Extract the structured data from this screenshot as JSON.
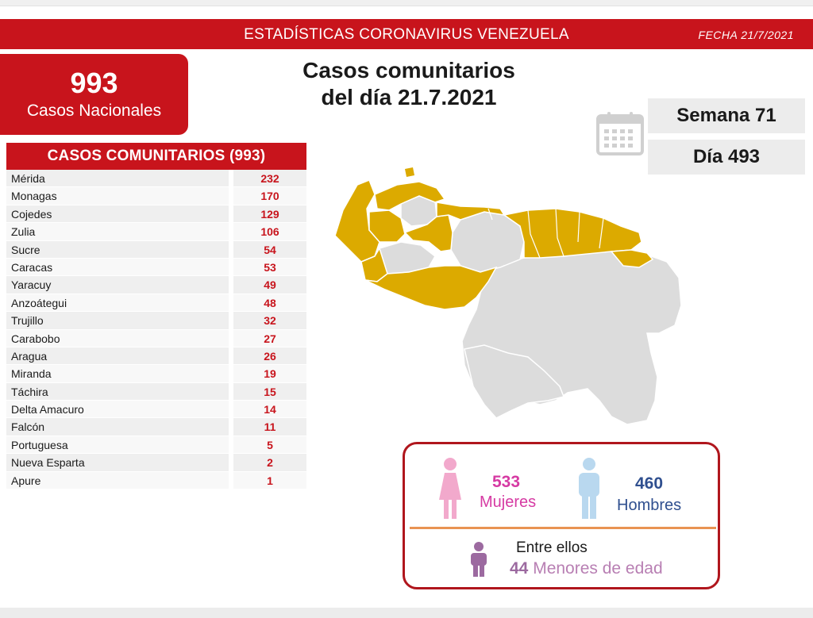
{
  "header": {
    "title": "ESTADÍSTICAS CORONAVIRUS VENEZUELA",
    "date": "FECHA 21/7/2021"
  },
  "national": {
    "count": "993",
    "label": "Casos Nacionales"
  },
  "main_title": {
    "line1": "Casos comunitarios",
    "line2": "del día 21.7.2021"
  },
  "calendar": {
    "icon": "calendar-icon",
    "week": "Semana 71",
    "day": "Día 493"
  },
  "table": {
    "heading": "CASOS COMUNITARIOS (993)",
    "rows": [
      {
        "name": "Mérida",
        "value": "232"
      },
      {
        "name": "Monagas",
        "value": "170"
      },
      {
        "name": "Cojedes",
        "value": "129"
      },
      {
        "name": "Zulia",
        "value": "106"
      },
      {
        "name": "Sucre",
        "value": "54"
      },
      {
        "name": "Caracas",
        "value": "53"
      },
      {
        "name": "Yaracuy",
        "value": "49"
      },
      {
        "name": "Anzoátegui",
        "value": "48"
      },
      {
        "name": "Trujillo",
        "value": "32"
      },
      {
        "name": "Carabobo",
        "value": "27"
      },
      {
        "name": "Aragua",
        "value": "26"
      },
      {
        "name": "Miranda",
        "value": "19"
      },
      {
        "name": "Táchira",
        "value": "15"
      },
      {
        "name": "Delta Amacuro",
        "value": "14"
      },
      {
        "name": "Falcón",
        "value": "11"
      },
      {
        "name": "Portuguesa",
        "value": "5"
      },
      {
        "name": "Nueva Esparta",
        "value": "2"
      },
      {
        "name": "Apure",
        "value": "1"
      }
    ]
  },
  "map": {
    "highlight_color": "#dcaa00",
    "base_color": "#dcdcdc"
  },
  "gender": {
    "women_count": "533",
    "women_label": "Mujeres",
    "men_count": "460",
    "men_label": "Hombres",
    "among_label": "Entre ellos",
    "minors_count": "44",
    "minors_label": "Menores de edad",
    "colors": {
      "women": "#d63aa3",
      "men": "#2f4f8f",
      "minors": "#9c6aa0",
      "divider": "#e99352",
      "border": "#b0161d"
    }
  }
}
